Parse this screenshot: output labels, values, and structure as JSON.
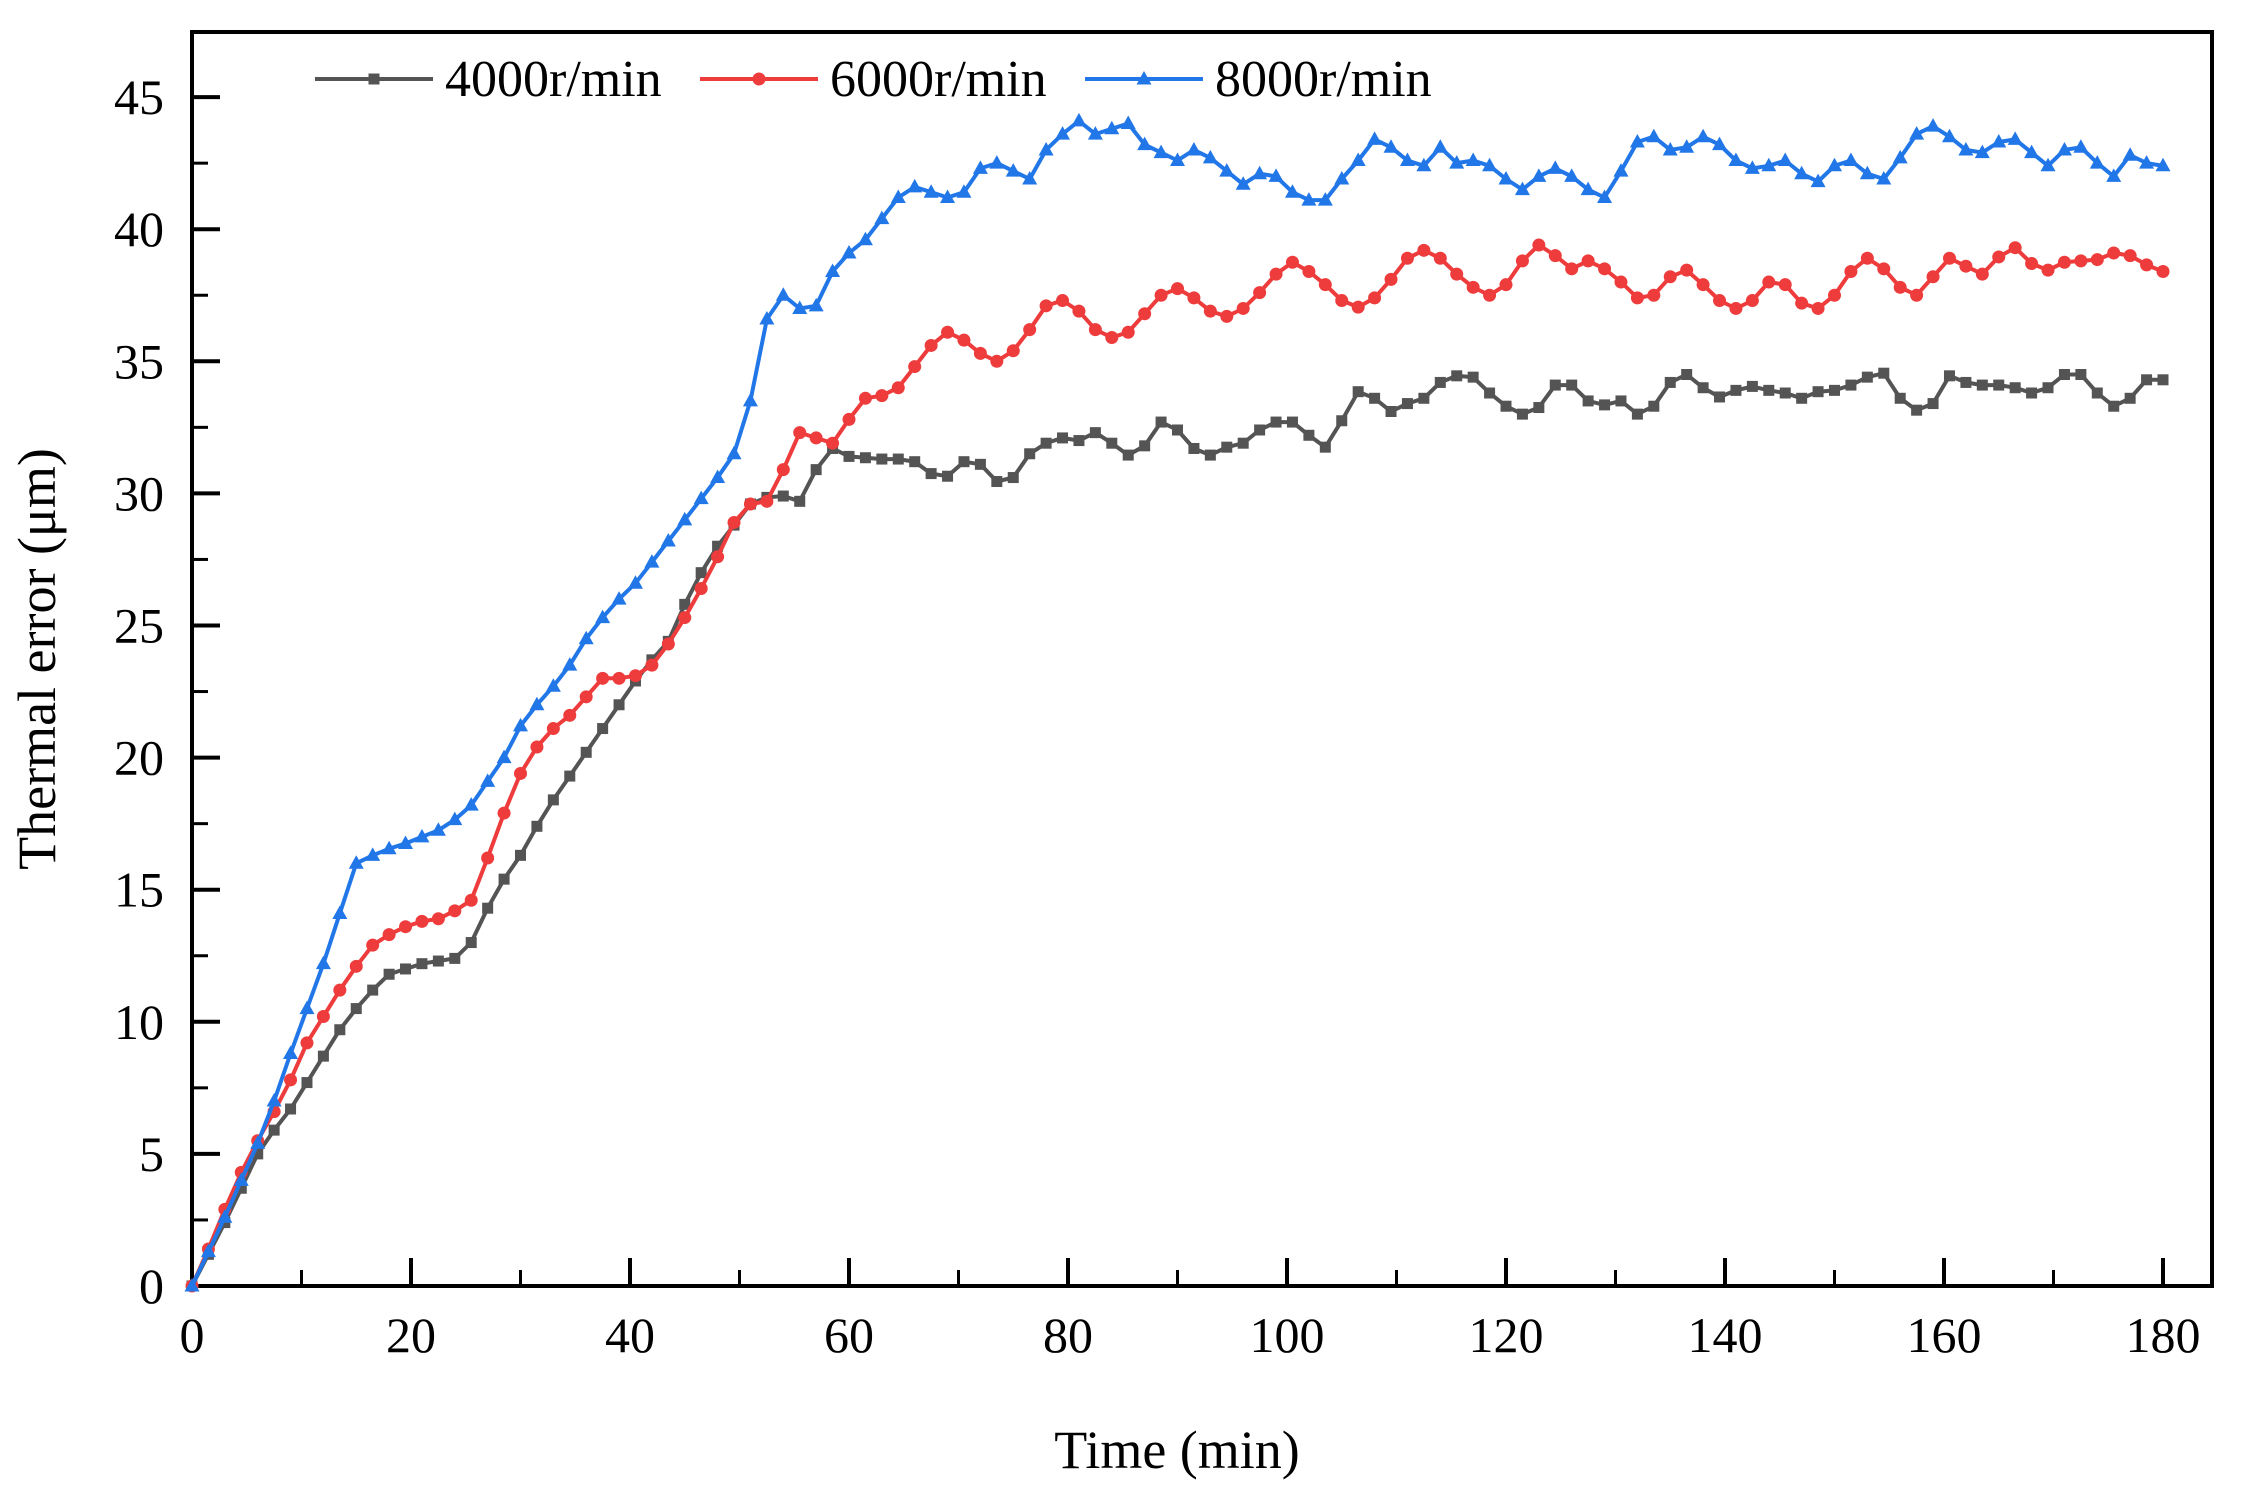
{
  "figure": {
    "background": "#ffffff",
    "frame_color": "#000000",
    "xlabel": "Time (min)",
    "ylabel": "Thermal error (μm)"
  },
  "legend": {
    "position": "top-inside",
    "entries": [
      "4000r/min",
      "6000r/min",
      "8000r/min"
    ]
  },
  "chart_data": {
    "type": "line",
    "title": "",
    "xlabel": "Time (min)",
    "ylabel": "Thermal error (μm)",
    "xlim": [
      0,
      184.5
    ],
    "ylim": [
      0,
      47.5
    ],
    "x_ticks_major": [
      0,
      20,
      40,
      60,
      80,
      100,
      120,
      140,
      160,
      180
    ],
    "x_ticks_minor_step": 10,
    "y_ticks_major": [
      0,
      5,
      10,
      15,
      20,
      25,
      30,
      35,
      40,
      45
    ],
    "y_ticks_minor_step": 2.5,
    "grid": false,
    "x_start": 0,
    "x_step": 1.5,
    "series": [
      {
        "name": "4000r/min",
        "color": "#545454",
        "marker": "square",
        "values": [
          0,
          1.2,
          2.4,
          3.7,
          5.0,
          5.9,
          6.7,
          7.7,
          8.7,
          9.7,
          10.5,
          11.2,
          11.8,
          12.0,
          12.2,
          12.3,
          12.4,
          13.0,
          14.3,
          15.4,
          16.3,
          17.4,
          18.4,
          19.3,
          20.2,
          21.1,
          22.0,
          22.9,
          23.7,
          24.4,
          25.8,
          27.0,
          28.0,
          28.8,
          29.6,
          29.85,
          29.9,
          29.7,
          30.9,
          31.7,
          31.4,
          31.35,
          31.3,
          31.3,
          31.2,
          30.75,
          30.65,
          31.2,
          31.1,
          30.45,
          30.6,
          31.5,
          31.9,
          32.1,
          32.0,
          32.3,
          31.9,
          31.45,
          31.8,
          32.7,
          32.4,
          31.7,
          31.45,
          31.75,
          31.9,
          32.4,
          32.7,
          32.7,
          32.2,
          31.75,
          32.75,
          33.85,
          33.6,
          33.1,
          33.4,
          33.6,
          34.2,
          34.45,
          34.4,
          33.8,
          33.3,
          33.0,
          33.25,
          34.1,
          34.1,
          33.5,
          33.35,
          33.5,
          33.0,
          33.3,
          34.2,
          34.5,
          34.0,
          33.65,
          33.9,
          34.05,
          33.9,
          33.8,
          33.6,
          33.85,
          33.9,
          34.1,
          34.4,
          34.55,
          33.6,
          33.15,
          33.4,
          34.45,
          34.2,
          34.1,
          34.1,
          34.0,
          33.8,
          34.0,
          34.5,
          34.5,
          33.8,
          33.3,
          33.6,
          34.3,
          34.3
        ]
      },
      {
        "name": "6000r/min",
        "color": "#ee3b3b",
        "marker": "circle",
        "values": [
          0,
          1.4,
          2.9,
          4.3,
          5.5,
          6.6,
          7.8,
          9.2,
          10.2,
          11.2,
          12.1,
          12.9,
          13.3,
          13.6,
          13.8,
          13.9,
          14.2,
          14.6,
          16.2,
          17.9,
          19.4,
          20.4,
          21.1,
          21.6,
          22.3,
          23.0,
          23.0,
          23.1,
          23.5,
          24.3,
          25.3,
          26.4,
          27.6,
          28.9,
          29.6,
          29.7,
          30.9,
          32.3,
          32.1,
          31.9,
          32.8,
          33.6,
          33.7,
          34.0,
          34.8,
          35.6,
          36.1,
          35.8,
          35.3,
          35.0,
          35.4,
          36.2,
          37.1,
          37.3,
          36.9,
          36.2,
          35.9,
          36.1,
          36.8,
          37.5,
          37.75,
          37.4,
          36.9,
          36.7,
          37.0,
          37.6,
          38.3,
          38.75,
          38.4,
          37.9,
          37.3,
          37.05,
          37.4,
          38.1,
          38.9,
          39.2,
          38.9,
          38.3,
          37.8,
          37.5,
          37.9,
          38.8,
          39.4,
          39.0,
          38.5,
          38.8,
          38.5,
          38.0,
          37.4,
          37.5,
          38.2,
          38.45,
          37.9,
          37.3,
          37.0,
          37.3,
          38.0,
          37.9,
          37.2,
          37.0,
          37.5,
          38.4,
          38.9,
          38.5,
          37.8,
          37.5,
          38.2,
          38.9,
          38.6,
          38.3,
          38.95,
          39.3,
          38.7,
          38.45,
          38.75,
          38.8,
          38.85,
          39.1,
          39.0,
          38.65,
          38.4
        ]
      },
      {
        "name": "8000r/min",
        "color": "#2277e8",
        "marker": "triangle",
        "values": [
          0,
          1.3,
          2.6,
          4.0,
          5.4,
          7.0,
          8.8,
          10.5,
          12.2,
          14.1,
          16.0,
          16.3,
          16.55,
          16.75,
          17.0,
          17.25,
          17.65,
          18.2,
          19.1,
          20.0,
          21.2,
          22.0,
          22.7,
          23.5,
          24.5,
          25.3,
          26.0,
          26.6,
          27.4,
          28.2,
          29.0,
          29.8,
          30.6,
          31.5,
          33.5,
          36.6,
          37.5,
          37.0,
          37.1,
          38.4,
          39.1,
          39.6,
          40.4,
          41.2,
          41.6,
          41.4,
          41.2,
          41.4,
          42.3,
          42.5,
          42.2,
          41.9,
          43.0,
          43.6,
          44.1,
          43.6,
          43.8,
          44.0,
          43.2,
          42.9,
          42.6,
          43.0,
          42.7,
          42.2,
          41.7,
          42.1,
          42.0,
          41.4,
          41.1,
          41.1,
          41.9,
          42.6,
          43.4,
          43.1,
          42.6,
          42.4,
          43.1,
          42.5,
          42.6,
          42.4,
          41.9,
          41.5,
          42.0,
          42.3,
          42.0,
          41.5,
          41.2,
          42.2,
          43.3,
          43.5,
          43.0,
          43.1,
          43.5,
          43.2,
          42.6,
          42.3,
          42.4,
          42.6,
          42.1,
          41.8,
          42.4,
          42.6,
          42.1,
          41.9,
          42.7,
          43.6,
          43.9,
          43.5,
          43.0,
          42.9,
          43.3,
          43.4,
          42.9,
          42.4,
          43.0,
          43.1,
          42.5,
          42.0,
          42.8,
          42.5,
          42.4
        ]
      }
    ]
  }
}
